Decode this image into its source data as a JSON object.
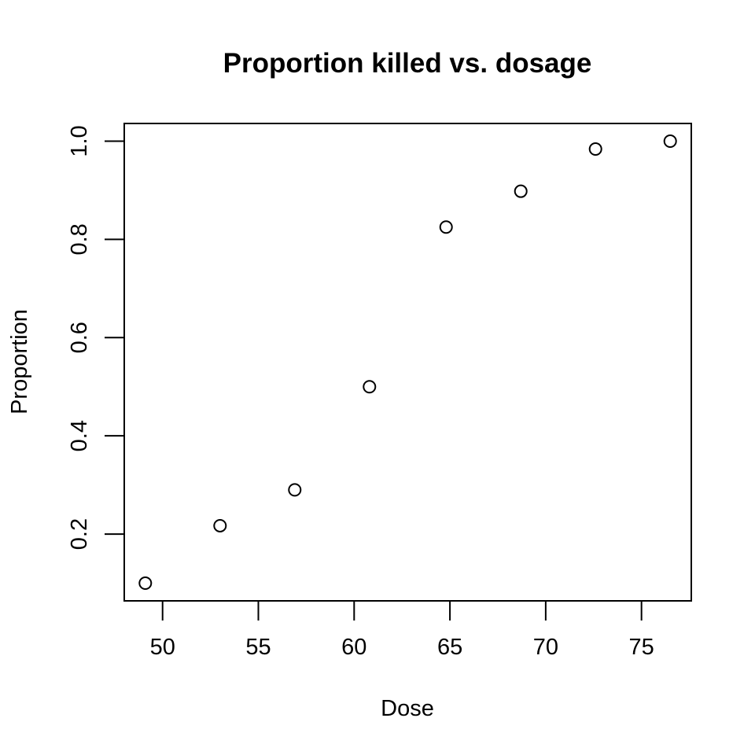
{
  "chart_data": {
    "type": "scatter",
    "title": "Proportion killed vs. dosage",
    "xlabel": "Dose",
    "ylabel": "Proportion",
    "x": [
      49.1,
      53.0,
      56.9,
      60.8,
      64.8,
      68.7,
      72.6,
      76.5
    ],
    "y": [
      0.1,
      0.217,
      0.29,
      0.5,
      0.825,
      0.898,
      0.984,
      1.0
    ],
    "xlim": [
      48.0,
      77.6
    ],
    "ylim": [
      0.064,
      1.036
    ],
    "xticks": [
      50,
      55,
      60,
      65,
      70,
      75
    ],
    "yticks": [
      0.2,
      0.4,
      0.6,
      0.8,
      1.0
    ],
    "xtick_labels": [
      "50",
      "55",
      "60",
      "65",
      "70",
      "75"
    ],
    "ytick_labels": [
      "0.2",
      "0.4",
      "0.6",
      "0.8",
      "1.0"
    ],
    "grid": false,
    "marker": "open-circle",
    "colors": {
      "marker": "#000000",
      "axis": "#000000",
      "background": "#ffffff"
    }
  }
}
